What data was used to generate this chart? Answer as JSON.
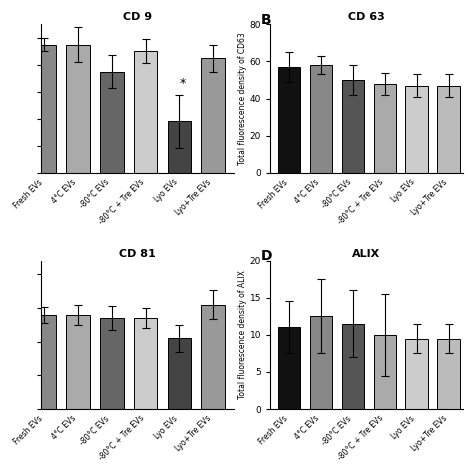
{
  "panels": [
    {
      "label": "",
      "title": "CD 9",
      "ylabel": "",
      "ylim": [
        0,
        110
      ],
      "yticks": [
        0,
        20,
        40,
        60,
        80,
        100
      ],
      "show_yticks": false,
      "categories": [
        "Fresh EVs",
        "4°C EVs",
        "-80°C EVs",
        "-80°C + Tre EVs",
        "Lyo EVs",
        "Lyo+Tre EVs"
      ],
      "values": [
        95,
        95,
        75,
        90,
        38,
        85
      ],
      "errors": [
        5,
        13,
        12,
        9,
        20,
        10
      ],
      "colors": [
        "#888888",
        "#aaaaaa",
        "#666666",
        "#cccccc",
        "#444444",
        "#999999"
      ],
      "asterisk_idx": 4,
      "clip_first": true
    },
    {
      "label": "B",
      "title": "CD 63",
      "ylabel": "Total fluorescence density of CD63",
      "ylim": [
        0,
        80
      ],
      "yticks": [
        0,
        20,
        40,
        60,
        80
      ],
      "show_yticks": true,
      "categories": [
        "Fresh EVs",
        "4°C EVs",
        "-80°C EVs",
        "-80°C + Tre EVs",
        "Lyo EVs",
        "Lyo+Tre EVs"
      ],
      "values": [
        57,
        58,
        50,
        48,
        47,
        47
      ],
      "errors": [
        8,
        5,
        8,
        6,
        6,
        6
      ],
      "colors": [
        "#111111",
        "#888888",
        "#555555",
        "#aaaaaa",
        "#cccccc",
        "#bbbbbb"
      ],
      "asterisk_idx": -1,
      "clip_first": false
    },
    {
      "label": "",
      "title": "CD 81",
      "ylabel": "",
      "ylim": [
        0,
        22
      ],
      "yticks": [
        0,
        5,
        10,
        15,
        20
      ],
      "show_yticks": false,
      "categories": [
        "Fresh EVs",
        "4°C EVs",
        "-80°C EVs",
        "-80°C + Tre EVs",
        "Lyo EVs",
        "Lyo+Tre EVs"
      ],
      "values": [
        14,
        14,
        13.5,
        13.5,
        10.5,
        15.5
      ],
      "errors": [
        1.2,
        1.5,
        1.8,
        1.5,
        2.0,
        2.2
      ],
      "colors": [
        "#888888",
        "#aaaaaa",
        "#666666",
        "#cccccc",
        "#444444",
        "#999999"
      ],
      "asterisk_idx": -1,
      "clip_first": true
    },
    {
      "label": "D",
      "title": "ALIX",
      "ylabel": "Total fluorescence density of ALIX",
      "ylim": [
        0,
        20
      ],
      "yticks": [
        0,
        5,
        10,
        15,
        20
      ],
      "show_yticks": true,
      "categories": [
        "Fresh EVs",
        "4°C EVs",
        "-80°C EVs",
        "-80°C + Tre EVs",
        "Lyo EVs",
        "Lyo+Tre EVs"
      ],
      "values": [
        11,
        12.5,
        11.5,
        10,
        9.5,
        9.5
      ],
      "errors": [
        3.5,
        5.0,
        4.5,
        5.5,
        2.0,
        2.0
      ],
      "colors": [
        "#111111",
        "#888888",
        "#555555",
        "#aaaaaa",
        "#cccccc",
        "#bbbbbb"
      ],
      "asterisk_idx": -1,
      "clip_first": false
    }
  ],
  "background_color": "#ffffff"
}
